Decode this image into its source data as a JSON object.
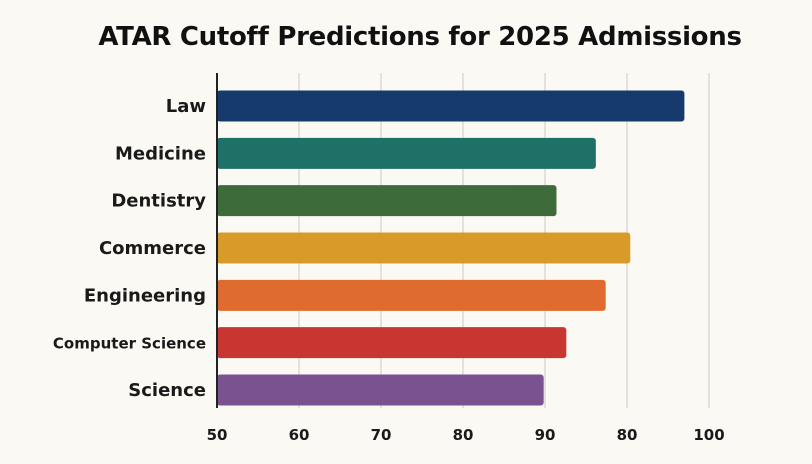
{
  "chart_data": {
    "type": "bar",
    "orientation": "horizontal",
    "title": "ATAR Cutoff Predictions for 2025 Admissions",
    "categories": [
      "Law",
      "Medicine",
      "Dentistry",
      "Commerce",
      "Engineering",
      "Computer Science",
      "Science"
    ],
    "values": [
      97.5,
      88.5,
      84.5,
      92,
      89.5,
      85.5,
      83.2
    ],
    "colors": [
      "#163a6b",
      "#1e7167",
      "#3e6b3a",
      "#d89a28",
      "#e06b2e",
      "#c93632",
      "#7a5290"
    ],
    "x_tick_labels": [
      "50",
      "60",
      "70",
      "80",
      "90",
      "80",
      "100"
    ],
    "grid": "vertical",
    "xlabel": "",
    "ylabel": ""
  }
}
